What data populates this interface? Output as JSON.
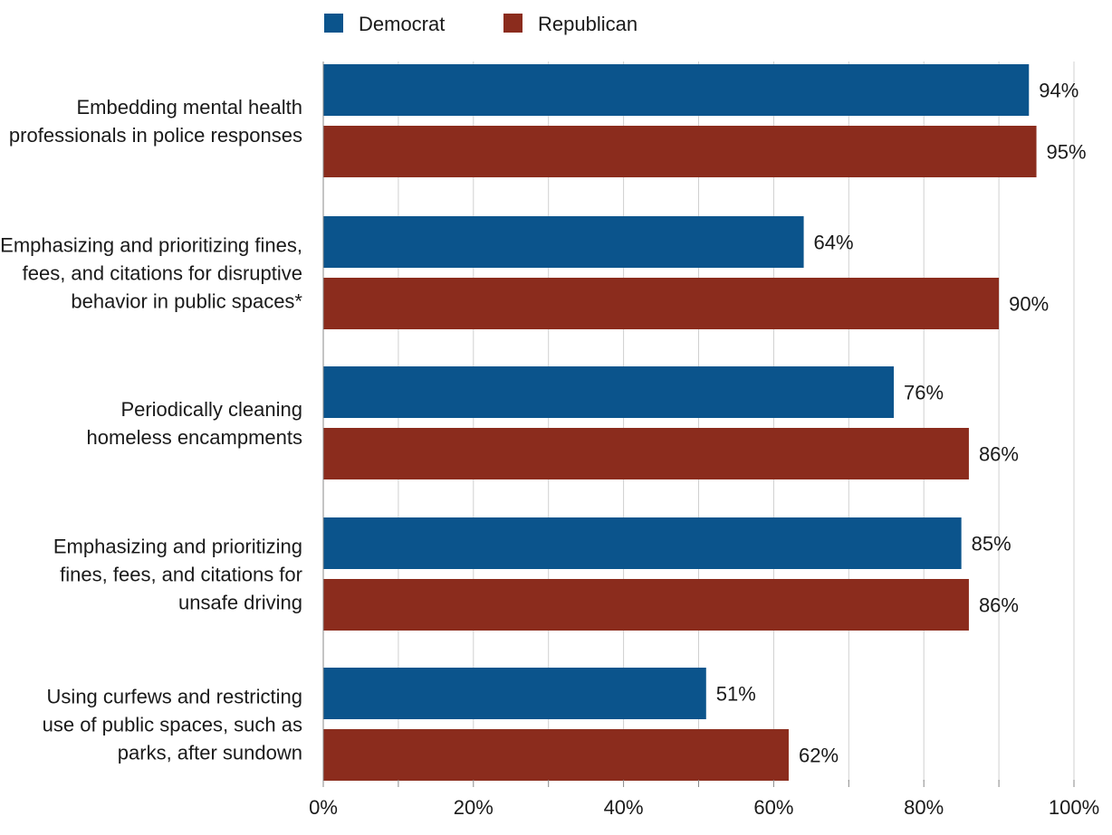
{
  "chart_data": {
    "type": "bar",
    "orientation": "horizontal",
    "title": "",
    "xlabel": "",
    "ylabel": "",
    "categories": [
      "Embedding mental health professionals in police responses",
      "Emphasizing and prioritizing fines, fees, and citations for disruptive behavior in public spaces*",
      "Periodically cleaning homeless encampments",
      "Emphasizing and prioritizing fines, fees, and citations for unsafe driving",
      "Using curfews and restricting use of public spaces, such as parks, after sundown"
    ],
    "category_label_lines": [
      [
        "Embedding mental health",
        "professionals in police responses"
      ],
      [
        "Emphasizing and prioritizing fines,",
        "fees, and citations for disruptive",
        "behavior in public spaces*"
      ],
      [
        "Periodically cleaning",
        "homeless encampments"
      ],
      [
        "Emphasizing and prioritizing",
        "fines, fees, and citations for",
        "unsafe driving"
      ],
      [
        "Using curfews and restricting",
        "use of public spaces, such as",
        "parks, after sundown"
      ]
    ],
    "series": [
      {
        "name": "Democrat",
        "color": "#0b548c",
        "values": [
          94,
          64,
          76,
          85,
          51
        ],
        "labels": [
          "94%",
          "64%",
          "76%",
          "85%",
          "51%"
        ]
      },
      {
        "name": "Republican",
        "color": "#8b2c1d",
        "values": [
          95,
          90,
          86,
          86,
          62
        ],
        "labels": [
          "95%",
          "90%",
          "86%",
          "86%",
          "62%"
        ]
      }
    ],
    "xlim": [
      0,
      100
    ],
    "xticks": [
      0,
      20,
      40,
      60,
      80,
      100
    ],
    "xtick_labels": [
      "0%",
      "20%",
      "40%",
      "60%",
      "80%",
      "100%"
    ],
    "grid": true,
    "grid_minor_step": 10,
    "legend_position": "top"
  }
}
